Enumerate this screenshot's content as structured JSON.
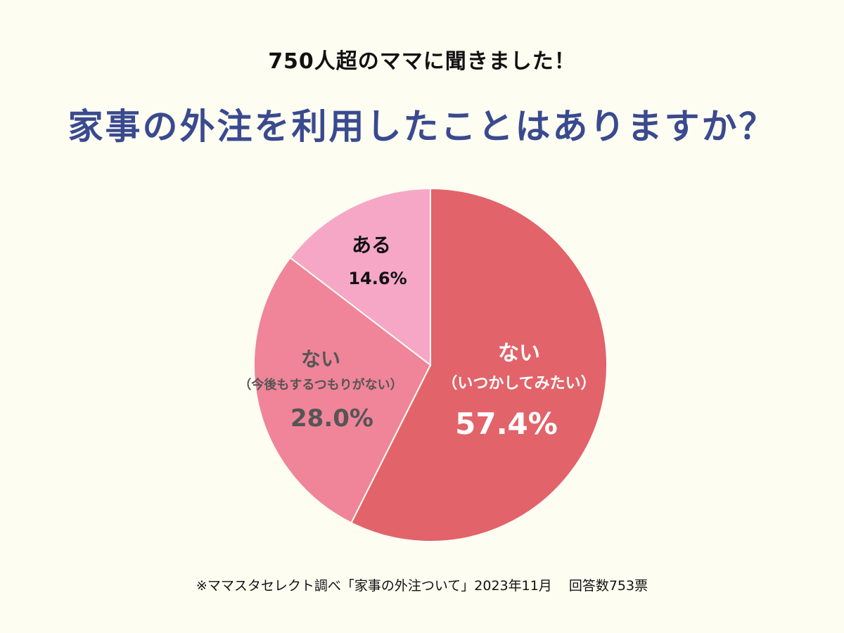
{
  "header": {
    "subtitle": "750人超のママに聞きました！",
    "title": "家事の外注を利用したことはありますか？"
  },
  "chart_data": {
    "type": "pie",
    "title": "家事の外注を利用したことはありますか？",
    "slices": [
      {
        "label": "ない",
        "sublabel": "（いつかしてみたい）",
        "value": 57.4,
        "value_label": "57.4%",
        "color": "#e2636a",
        "text_color": "#ffffff"
      },
      {
        "label": "ない",
        "sublabel": "（今後もするつもりがない）",
        "value": 28.0,
        "value_label": "28.0%",
        "color": "#f08499",
        "text_color": "#555555"
      },
      {
        "label": "ある",
        "sublabel": "",
        "value": 14.6,
        "value_label": "14.6%",
        "color": "#f6a7c6",
        "text_color": "#111111"
      }
    ],
    "start": "12 o'clock",
    "direction": "clockwise"
  },
  "footer": {
    "source": "※ママスタセレクト調べ「家事の外注ついて」2023年11月",
    "responses": "回答数753票"
  }
}
